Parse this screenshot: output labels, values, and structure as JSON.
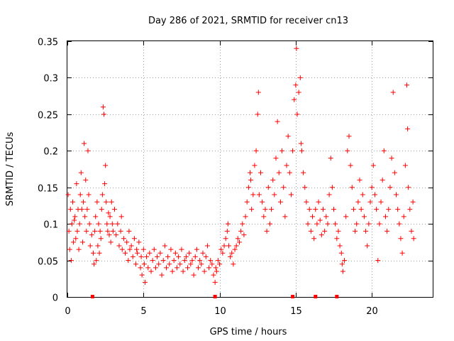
{
  "chart_data": {
    "type": "scatter",
    "title": "Day 286 of 2021, SRMTID for receiver cn13",
    "xlabel": "GPS time / hours",
    "ylabel": "SRMTID / TECUs",
    "xlim": [
      0,
      24
    ],
    "ylim": [
      0,
      0.35
    ],
    "x_ticks": [
      0,
      5,
      10,
      15,
      20
    ],
    "x_tick_labels": [
      "0",
      "5",
      "10",
      "15",
      "20"
    ],
    "y_ticks": [
      0,
      0.05,
      0.1,
      0.15,
      0.2,
      0.25,
      0.3,
      0.35
    ],
    "y_tick_labels": [
      "0",
      "0.05",
      "0.1",
      "0.15",
      "0.2",
      "0.25",
      "0.3",
      "0.35"
    ],
    "grid": true,
    "marker": "plus",
    "color": "#ff0000",
    "series": [
      {
        "name": "SRMTID",
        "points": [
          [
            0.05,
            0.14
          ],
          [
            0.1,
            0.09
          ],
          [
            0.15,
            0.065
          ],
          [
            0.2,
            0.12
          ],
          [
            0.25,
            0.05
          ],
          [
            0.3,
            0.1
          ],
          [
            0.35,
            0.13
          ],
          [
            0.4,
            0.075
          ],
          [
            0.45,
            0.105
          ],
          [
            0.5,
            0.11
          ],
          [
            0.55,
            0.08
          ],
          [
            0.6,
            0.155
          ],
          [
            0.65,
            0.09
          ],
          [
            0.7,
            0.12
          ],
          [
            0.75,
            0.065
          ],
          [
            0.8,
            0.1
          ],
          [
            0.85,
            0.14
          ],
          [
            0.9,
            0.17
          ],
          [
            0.95,
            0.12
          ],
          [
            1.0,
            0.075
          ],
          [
            1.05,
            0.13
          ],
          [
            1.1,
            0.21
          ],
          [
            1.15,
            0.11
          ],
          [
            1.2,
            0.16
          ],
          [
            1.25,
            0.09
          ],
          [
            1.3,
            0.12
          ],
          [
            1.35,
            0.2
          ],
          [
            1.4,
            0.14
          ],
          [
            1.45,
            0.1
          ],
          [
            1.5,
            0.07
          ],
          [
            1.6,
            0.085
          ],
          [
            1.7,
            0.06
          ],
          [
            1.75,
            0.045
          ],
          [
            1.8,
            0.09
          ],
          [
            1.85,
            0.11
          ],
          [
            1.9,
            0.05
          ],
          [
            1.95,
            0.13
          ],
          [
            2.0,
            0.07
          ],
          [
            2.05,
            0.1
          ],
          [
            2.1,
            0.06
          ],
          [
            2.15,
            0.09
          ],
          [
            2.2,
            0.08
          ],
          [
            2.25,
            0.12
          ],
          [
            2.3,
            0.14
          ],
          [
            2.35,
            0.26
          ],
          [
            2.4,
            0.25
          ],
          [
            2.45,
            0.155
          ],
          [
            2.5,
            0.18
          ],
          [
            2.55,
            0.13
          ],
          [
            2.6,
            0.1
          ],
          [
            2.65,
            0.09
          ],
          [
            2.7,
            0.115
          ],
          [
            2.75,
            0.085
          ],
          [
            2.8,
            0.11
          ],
          [
            2.85,
            0.075
          ],
          [
            2.9,
            0.13
          ],
          [
            2.95,
            0.1
          ],
          [
            3.0,
            0.09
          ],
          [
            3.1,
            0.12
          ],
          [
            3.2,
            0.085
          ],
          [
            3.3,
            0.1
          ],
          [
            3.4,
            0.07
          ],
          [
            3.5,
            0.09
          ],
          [
            3.55,
            0.11
          ],
          [
            3.6,
            0.065
          ],
          [
            3.7,
            0.08
          ],
          [
            3.8,
            0.06
          ],
          [
            3.9,
            0.075
          ],
          [
            4.0,
            0.05
          ],
          [
            4.05,
            0.09
          ],
          [
            4.1,
            0.065
          ],
          [
            4.2,
            0.07
          ],
          [
            4.3,
            0.055
          ],
          [
            4.4,
            0.08
          ],
          [
            4.5,
            0.045
          ],
          [
            4.55,
            0.065
          ],
          [
            4.6,
            0.06
          ],
          [
            4.7,
            0.075
          ],
          [
            4.8,
            0.04
          ],
          [
            4.85,
            0.055
          ],
          [
            4.9,
            0.03
          ],
          [
            5.0,
            0.065
          ],
          [
            5.05,
            0.045
          ],
          [
            5.1,
            0.02
          ],
          [
            5.2,
            0.055
          ],
          [
            5.3,
            0.04
          ],
          [
            5.4,
            0.06
          ],
          [
            5.5,
            0.035
          ],
          [
            5.6,
            0.05
          ],
          [
            5.7,
            0.065
          ],
          [
            5.8,
            0.04
          ],
          [
            5.9,
            0.055
          ],
          [
            6.0,
            0.045
          ],
          [
            6.1,
            0.06
          ],
          [
            6.2,
            0.03
          ],
          [
            6.3,
            0.05
          ],
          [
            6.4,
            0.07
          ],
          [
            6.5,
            0.04
          ],
          [
            6.6,
            0.055
          ],
          [
            6.7,
            0.045
          ],
          [
            6.8,
            0.065
          ],
          [
            6.9,
            0.035
          ],
          [
            7.0,
            0.05
          ],
          [
            7.1,
            0.06
          ],
          [
            7.2,
            0.04
          ],
          [
            7.3,
            0.055
          ],
          [
            7.4,
            0.045
          ],
          [
            7.5,
            0.065
          ],
          [
            7.6,
            0.035
          ],
          [
            7.7,
            0.05
          ],
          [
            7.8,
            0.055
          ],
          [
            7.9,
            0.04
          ],
          [
            8.0,
            0.06
          ],
          [
            8.1,
            0.045
          ],
          [
            8.2,
            0.05
          ],
          [
            8.3,
            0.03
          ],
          [
            8.4,
            0.055
          ],
          [
            8.5,
            0.065
          ],
          [
            8.6,
            0.04
          ],
          [
            8.7,
            0.05
          ],
          [
            8.8,
            0.045
          ],
          [
            8.9,
            0.06
          ],
          [
            9.0,
            0.035
          ],
          [
            9.1,
            0.055
          ],
          [
            9.2,
            0.07
          ],
          [
            9.3,
            0.04
          ],
          [
            9.4,
            0.05
          ],
          [
            9.5,
            0.045
          ],
          [
            9.6,
            0.03
          ],
          [
            9.7,
            0.02
          ],
          [
            9.75,
            0.04
          ],
          [
            9.8,
            0.035
          ],
          [
            9.9,
            0.05
          ],
          [
            10.0,
            0.045
          ],
          [
            10.1,
            0.065
          ],
          [
            10.2,
            0.06
          ],
          [
            10.3,
            0.07
          ],
          [
            10.4,
            0.08
          ],
          [
            10.5,
            0.09
          ],
          [
            10.55,
            0.1
          ],
          [
            10.6,
            0.07
          ],
          [
            10.7,
            0.055
          ],
          [
            10.8,
            0.06
          ],
          [
            10.9,
            0.045
          ],
          [
            11.0,
            0.065
          ],
          [
            11.1,
            0.07
          ],
          [
            11.2,
            0.08
          ],
          [
            11.3,
            0.075
          ],
          [
            11.4,
            0.09
          ],
          [
            11.5,
            0.1
          ],
          [
            11.6,
            0.085
          ],
          [
            11.7,
            0.11
          ],
          [
            11.8,
            0.13
          ],
          [
            11.9,
            0.15
          ],
          [
            12.0,
            0.17
          ],
          [
            12.05,
            0.16
          ],
          [
            12.1,
            0.12
          ],
          [
            12.2,
            0.14
          ],
          [
            12.3,
            0.18
          ],
          [
            12.4,
            0.2
          ],
          [
            12.5,
            0.25
          ],
          [
            12.55,
            0.28
          ],
          [
            12.6,
            0.14
          ],
          [
            12.7,
            0.17
          ],
          [
            12.8,
            0.13
          ],
          [
            12.9,
            0.11
          ],
          [
            13.0,
            0.12
          ],
          [
            13.1,
            0.09
          ],
          [
            13.2,
            0.15
          ],
          [
            13.3,
            0.1
          ],
          [
            13.4,
            0.12
          ],
          [
            13.5,
            0.16
          ],
          [
            13.6,
            0.14
          ],
          [
            13.7,
            0.19
          ],
          [
            13.8,
            0.24
          ],
          [
            13.9,
            0.17
          ],
          [
            14.0,
            0.13
          ],
          [
            14.1,
            0.2
          ],
          [
            14.2,
            0.15
          ],
          [
            14.3,
            0.11
          ],
          [
            14.4,
            0.18
          ],
          [
            14.5,
            0.22
          ],
          [
            14.6,
            0.17
          ],
          [
            14.7,
            0.14
          ],
          [
            14.8,
            0.2
          ],
          [
            14.9,
            0.27
          ],
          [
            15.0,
            0.29
          ],
          [
            15.05,
            0.34
          ],
          [
            15.1,
            0.25
          ],
          [
            15.2,
            0.28
          ],
          [
            15.3,
            0.3
          ],
          [
            15.35,
            0.21
          ],
          [
            15.4,
            0.2
          ],
          [
            15.5,
            0.17
          ],
          [
            15.6,
            0.15
          ],
          [
            15.7,
            0.13
          ],
          [
            15.8,
            0.1
          ],
          [
            15.9,
            0.12
          ],
          [
            16.0,
            0.09
          ],
          [
            16.1,
            0.11
          ],
          [
            16.2,
            0.08
          ],
          [
            16.3,
            0.12
          ],
          [
            16.4,
            0.1
          ],
          [
            16.5,
            0.13
          ],
          [
            16.6,
            0.105
          ],
          [
            16.7,
            0.085
          ],
          [
            16.8,
            0.12
          ],
          [
            16.9,
            0.09
          ],
          [
            17.0,
            0.11
          ],
          [
            17.1,
            0.1
          ],
          [
            17.2,
            0.14
          ],
          [
            17.3,
            0.19
          ],
          [
            17.4,
            0.15
          ],
          [
            17.5,
            0.12
          ],
          [
            17.6,
            0.1
          ],
          [
            17.7,
            0.08
          ],
          [
            17.8,
            0.09
          ],
          [
            17.9,
            0.07
          ],
          [
            18.0,
            0.06
          ],
          [
            18.05,
            0.045
          ],
          [
            18.1,
            0.035
          ],
          [
            18.2,
            0.05
          ],
          [
            18.3,
            0.11
          ],
          [
            18.4,
            0.2
          ],
          [
            18.5,
            0.22
          ],
          [
            18.6,
            0.18
          ],
          [
            18.7,
            0.15
          ],
          [
            18.8,
            0.12
          ],
          [
            18.9,
            0.09
          ],
          [
            19.0,
            0.1
          ],
          [
            19.1,
            0.13
          ],
          [
            19.2,
            0.16
          ],
          [
            19.3,
            0.12
          ],
          [
            19.4,
            0.14
          ],
          [
            19.5,
            0.11
          ],
          [
            19.6,
            0.09
          ],
          [
            19.7,
            0.07
          ],
          [
            19.8,
            0.1
          ],
          [
            19.9,
            0.13
          ],
          [
            20.0,
            0.15
          ],
          [
            20.1,
            0.18
          ],
          [
            20.2,
            0.14
          ],
          [
            20.3,
            0.12
          ],
          [
            20.4,
            0.05
          ],
          [
            20.5,
            0.1
          ],
          [
            20.6,
            0.13
          ],
          [
            20.7,
            0.16
          ],
          [
            20.8,
            0.2
          ],
          [
            20.9,
            0.11
          ],
          [
            21.0,
            0.09
          ],
          [
            21.1,
            0.12
          ],
          [
            21.2,
            0.15
          ],
          [
            21.3,
            0.19
          ],
          [
            21.4,
            0.28
          ],
          [
            21.5,
            0.17
          ],
          [
            21.6,
            0.14
          ],
          [
            21.7,
            0.12
          ],
          [
            21.8,
            0.1
          ],
          [
            21.9,
            0.08
          ],
          [
            22.0,
            0.06
          ],
          [
            22.1,
            0.11
          ],
          [
            22.2,
            0.18
          ],
          [
            22.3,
            0.29
          ],
          [
            22.35,
            0.23
          ],
          [
            22.4,
            0.15
          ],
          [
            22.5,
            0.12
          ],
          [
            22.6,
            0.09
          ],
          [
            22.7,
            0.13
          ],
          [
            22.75,
            0.08
          ]
        ]
      },
      {
        "name": "zero-markers",
        "marker": "square",
        "points": [
          [
            1.65,
            0
          ],
          [
            9.7,
            0
          ],
          [
            14.8,
            0
          ],
          [
            16.3,
            0
          ],
          [
            17.7,
            0
          ]
        ]
      }
    ]
  }
}
